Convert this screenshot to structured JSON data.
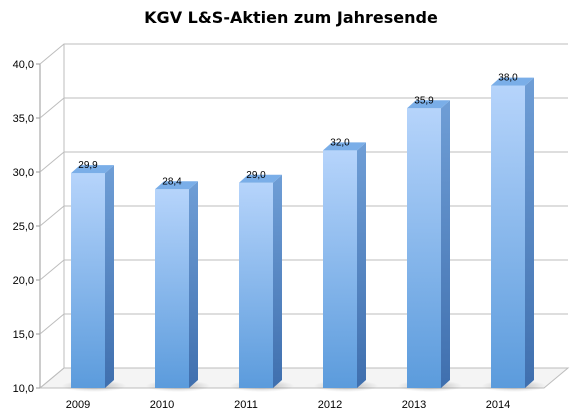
{
  "chart_data": {
    "type": "bar",
    "title": "KGV L&S-Aktien zum Jahresende",
    "categories": [
      "2009",
      "2010",
      "2011",
      "2012",
      "2013",
      "2014"
    ],
    "values": [
      29.9,
      28.4,
      29.0,
      32.0,
      35.9,
      38.0
    ],
    "data_labels": [
      "29,9",
      "28,4",
      "29,0",
      "32,0",
      "35,9",
      "38,0"
    ],
    "ylim": [
      10,
      40
    ],
    "y_ticks": [
      "10,0",
      "15,0",
      "20,0",
      "25,0",
      "30,0",
      "35,0",
      "40,0"
    ],
    "y_tick_values": [
      10,
      15,
      20,
      25,
      30,
      35,
      40
    ],
    "xlabel": "",
    "ylabel": "",
    "grid": true,
    "legend": "none",
    "style": "3d",
    "colors": {
      "bar_light": "#b6d4fb",
      "bar_dark": "#5b9bdc",
      "bar_side": "#4a7fbf",
      "bar_top": "#7aaee8",
      "grid": "#bdbdbd"
    }
  }
}
